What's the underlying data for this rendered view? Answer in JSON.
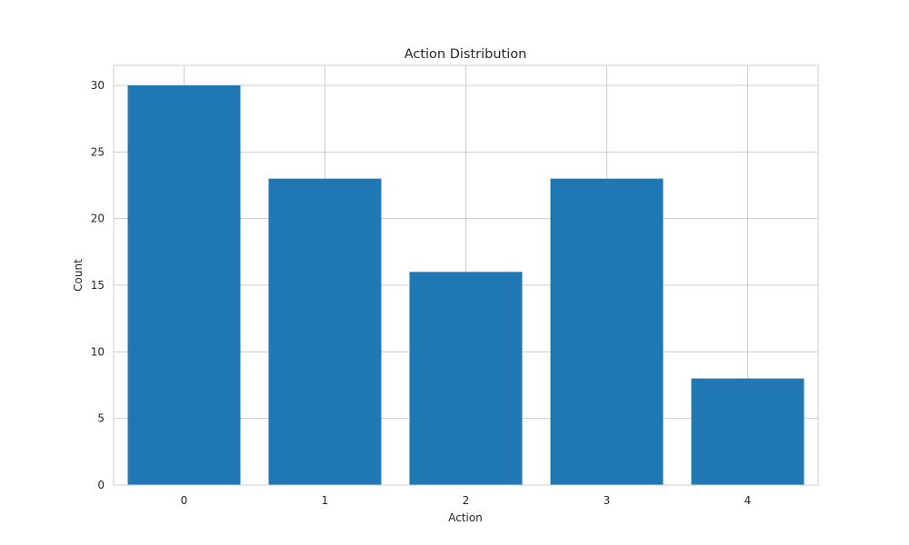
{
  "chart_data": {
    "type": "bar",
    "title": "Action Distribution",
    "xlabel": "Action",
    "ylabel": "Count",
    "categories": [
      "0",
      "1",
      "2",
      "3",
      "4"
    ],
    "values": [
      30,
      23,
      16,
      23,
      8
    ],
    "ylim": [
      0,
      31.5
    ],
    "yticks": [
      0,
      5,
      10,
      15,
      20,
      25,
      30
    ],
    "grid": true,
    "bar_color": "#1f77b4",
    "grid_color": "#cccccc",
    "axes_edge_color": "#cccccc"
  }
}
